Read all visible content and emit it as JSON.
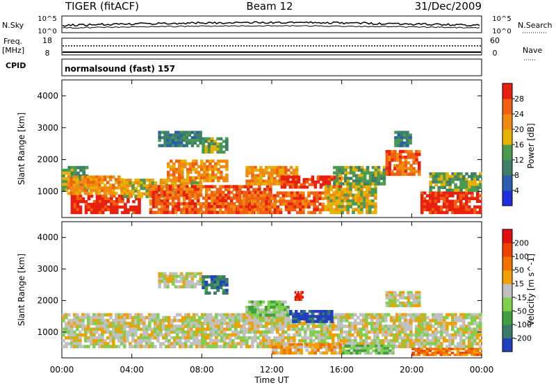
{
  "header": {
    "title": "TIGER (fitACF)",
    "beam": "Beam 12",
    "date": "31/Dec/2009"
  },
  "top_panels": {
    "nsky_label": "N.Sky",
    "nsky_ticks": [
      "10^5",
      "10^0"
    ],
    "nsearch_label": "N.Search",
    "nsearch_ticks": [
      "10^5",
      "10^0"
    ],
    "freq_label": "Freq.",
    "freq_unit": "[MHz]",
    "freq_ticks": [
      "18",
      "8"
    ],
    "nave_label": "Nave",
    "nave_ticks": [
      "60",
      "0"
    ],
    "cpid_label": "CPID",
    "cpid_value": "normalsound (fast) 157"
  },
  "x_axis": {
    "label": "Time UT",
    "ticks": [
      "00:00",
      "04:00",
      "08:00",
      "12:00",
      "16:00",
      "20:00",
      "00:00"
    ]
  },
  "chart_data": [
    {
      "type": "heatmap",
      "name": "power",
      "ylabel": "Slant Range [km]",
      "yticks": [
        1000,
        2000,
        3000,
        4000
      ],
      "ylim": [
        180,
        4500
      ],
      "xlim_hours": [
        0,
        24
      ],
      "colorbar": {
        "label": "Power [dB]",
        "ticks": [
          "4",
          "8",
          "12",
          "16",
          "20",
          "24",
          "28"
        ],
        "colors": [
          "#1f2fe0",
          "#2a5fb0",
          "#3f7f6a",
          "#4a9a50",
          "#e8b000",
          "#f08a10",
          "#f06010",
          "#e82010"
        ]
      },
      "blobs": [
        {
          "t0": 0.0,
          "t1": 1.5,
          "r0": 1000,
          "r1": 1800,
          "ci": 3
        },
        {
          "t0": 0.5,
          "t1": 4.5,
          "r0": 300,
          "r1": 900,
          "ci": 7
        },
        {
          "t0": 0.3,
          "t1": 3.5,
          "r0": 900,
          "r1": 1500,
          "ci": 5
        },
        {
          "t0": 3.5,
          "t1": 8.0,
          "r0": 800,
          "r1": 1400,
          "ci": 4
        },
        {
          "t0": 5.0,
          "t1": 12.0,
          "r0": 300,
          "r1": 1200,
          "ci": 6
        },
        {
          "t0": 6.0,
          "t1": 9.5,
          "r0": 1300,
          "r1": 2000,
          "ci": 5
        },
        {
          "t0": 5.5,
          "t1": 8.0,
          "r0": 2400,
          "r1": 2900,
          "ci": 2
        },
        {
          "t0": 8.0,
          "t1": 9.5,
          "r0": 2200,
          "r1": 2700,
          "ci": 3
        },
        {
          "t0": 10.5,
          "t1": 13.5,
          "r0": 1200,
          "r1": 1800,
          "ci": 5
        },
        {
          "t0": 10.0,
          "t1": 15.0,
          "r0": 300,
          "r1": 1000,
          "ci": 6
        },
        {
          "t0": 12.5,
          "t1": 16.0,
          "r0": 1100,
          "r1": 1500,
          "ci": 7
        },
        {
          "t0": 15.0,
          "t1": 18.0,
          "r0": 300,
          "r1": 1200,
          "ci": 4
        },
        {
          "t0": 15.5,
          "t1": 18.5,
          "r0": 1200,
          "r1": 1800,
          "ci": 3
        },
        {
          "t0": 18.5,
          "t1": 20.5,
          "r0": 1500,
          "r1": 2300,
          "ci": 6
        },
        {
          "t0": 19.0,
          "t1": 20.0,
          "r0": 2400,
          "r1": 2900,
          "ci": 2
        },
        {
          "t0": 20.5,
          "t1": 24.0,
          "r0": 300,
          "r1": 1000,
          "ci": 7
        },
        {
          "t0": 21.0,
          "t1": 24.0,
          "r0": 1000,
          "r1": 1600,
          "ci": 3
        }
      ]
    },
    {
      "type": "heatmap",
      "name": "velocity",
      "ylabel": "Slant Range [km]",
      "yticks": [
        1000,
        2000,
        3000,
        4000
      ],
      "ylim": [
        180,
        4500
      ],
      "xlim_hours": [
        0,
        24
      ],
      "colorbar": {
        "label": "Velocity [m s^-1]",
        "ticks": [
          "200",
          "100",
          "50",
          "15",
          "-15",
          "-50",
          "-100",
          "-200"
        ],
        "colors": [
          "#2040c0",
          "#3a7a6a",
          "#40a040",
          "#80d050",
          "#c0c0c0",
          "#f0a000",
          "#f07000",
          "#f04000",
          "#e01010"
        ]
      },
      "blobs": [
        {
          "t0": 0.0,
          "t1": 24.0,
          "r0": 500,
          "r1": 1600,
          "ci": 4
        },
        {
          "t0": 5.5,
          "t1": 8.0,
          "r0": 2400,
          "r1": 2900,
          "ci": 4
        },
        {
          "t0": 8.0,
          "t1": 9.5,
          "r0": 2200,
          "r1": 2800,
          "ci": 1
        },
        {
          "t0": 10.5,
          "t1": 13.0,
          "r0": 1500,
          "r1": 2000,
          "ci": 3
        },
        {
          "t0": 13.0,
          "t1": 15.5,
          "r0": 1300,
          "r1": 1700,
          "ci": 0
        },
        {
          "t0": 12.0,
          "t1": 16.0,
          "r0": 300,
          "r1": 650,
          "ci": 5
        },
        {
          "t0": 16.0,
          "t1": 19.0,
          "r0": 300,
          "r1": 600,
          "ci": 3
        },
        {
          "t0": 20.0,
          "t1": 24.0,
          "r0": 250,
          "r1": 500,
          "ci": 6
        },
        {
          "t0": 18.5,
          "t1": 20.5,
          "r0": 1800,
          "r1": 2300,
          "ci": 4
        },
        {
          "t0": 13.3,
          "t1": 13.8,
          "r0": 2000,
          "r1": 2300,
          "ci": 8
        }
      ]
    }
  ]
}
